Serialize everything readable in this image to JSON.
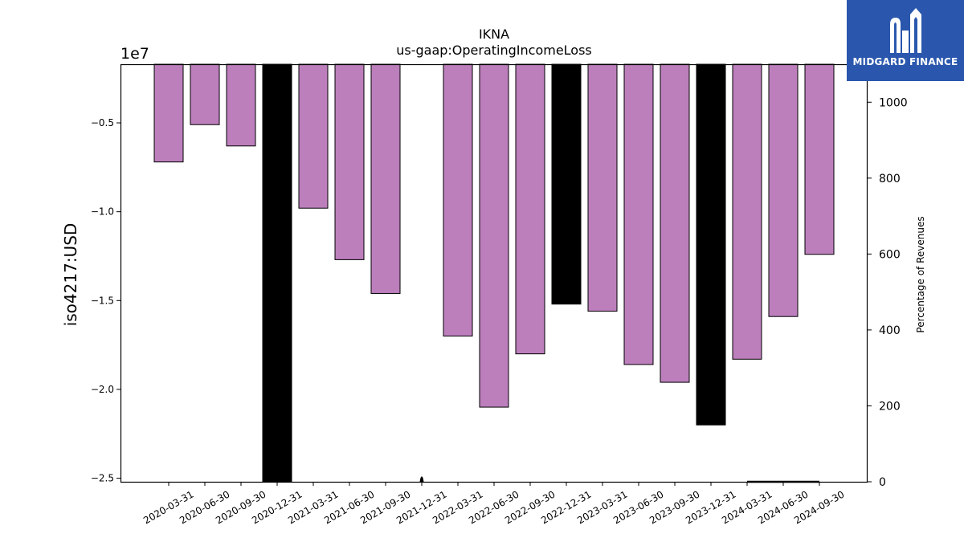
{
  "chart_data": {
    "type": "bar",
    "title": "IKNA",
    "subtitle": "us-gaap:OperatingIncomeLoss",
    "ylabel": "iso4217:USD",
    "ylabel_right": "Percentage of Revenues",
    "y_offset_label": "1e7",
    "ylim": [
      -2.52,
      -0.17
    ],
    "ylim_right": [
      0,
      1100
    ],
    "yticks": [
      -0.5,
      -1.0,
      -1.5,
      -2.0,
      -2.5
    ],
    "ytick_labels": [
      "−0.5",
      "−1.0",
      "−1.5",
      "−2.0",
      "−2.5"
    ],
    "yticks_right": [
      0,
      200,
      400,
      600,
      800,
      1000
    ],
    "categories": [
      "2020-03-31",
      "2020-06-30",
      "2020-09-30",
      "2020-12-31",
      "2021-03-31",
      "2021-06-30",
      "2021-09-30",
      "2021-12-31",
      "2022-03-31",
      "2022-06-30",
      "2022-09-30",
      "2022-12-31",
      "2023-03-31",
      "2023-06-30",
      "2023-09-30",
      "2023-12-31",
      "2024-03-31",
      "2024-06-30",
      "2024-09-30"
    ],
    "series": [
      {
        "values": [
          -0.72,
          -0.51,
          -0.63,
          -2.52,
          -0.98,
          -1.27,
          -1.46,
          null,
          -1.7,
          -2.1,
          -1.8,
          -1.52,
          -1.56,
          -1.86,
          -1.96,
          -2.2,
          -1.83,
          -1.59,
          -1.24
        ],
        "colors": [
          "#bc7fbc",
          "#bc7fbc",
          "#bc7fbc",
          "#000000",
          "#bc7fbc",
          "#bc7fbc",
          "#bc7fbc",
          "#bc7fbc",
          "#bc7fbc",
          "#bc7fbc",
          "#bc7fbc",
          "#000000",
          "#bc7fbc",
          "#bc7fbc",
          "#bc7fbc",
          "#000000",
          "#bc7fbc",
          "#bc7fbc",
          "#bc7fbc"
        ]
      }
    ],
    "grid": false,
    "legend": "none"
  },
  "logo": {
    "text": "MIDGARD FINANCE"
  }
}
